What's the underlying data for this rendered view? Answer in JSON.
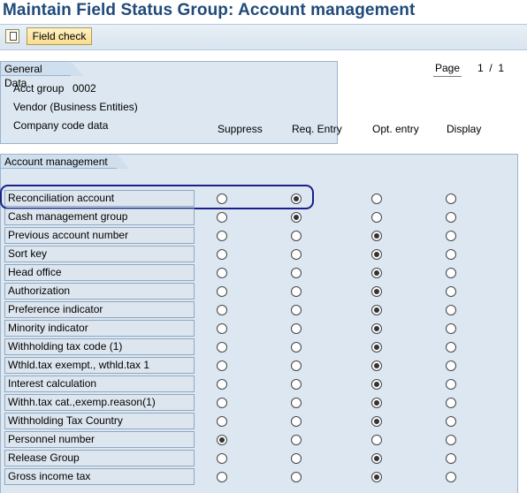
{
  "title": "Maintain Field Status Group: Account management",
  "toolbar": {
    "field_check_label": "Field check"
  },
  "general": {
    "tab": "General Data",
    "acct_group_label": "Acct group",
    "acct_group_value": "0002",
    "description": "Vendor (Business Entities)",
    "section": "Company code data"
  },
  "page": {
    "label": "Page",
    "current": "1",
    "sep": "/",
    "total": "1"
  },
  "account": {
    "tab": "Account management",
    "headers": [
      "Suppress",
      "Req. Entry",
      "Opt. entry",
      "Display"
    ],
    "rows": [
      {
        "label": "Reconciliation account",
        "selected": "req"
      },
      {
        "label": "Cash management group",
        "selected": "req"
      },
      {
        "label": "Previous account number",
        "selected": "opt"
      },
      {
        "label": "Sort key",
        "selected": "opt"
      },
      {
        "label": "Head office",
        "selected": "opt"
      },
      {
        "label": "Authorization",
        "selected": "opt"
      },
      {
        "label": "Preference indicator",
        "selected": "opt"
      },
      {
        "label": "Minority indicator",
        "selected": "opt"
      },
      {
        "label": "Withholding tax code (1)",
        "selected": "opt"
      },
      {
        "label": "Wthld.tax exempt., wthld.tax 1",
        "selected": "opt"
      },
      {
        "label": "Interest calculation",
        "selected": "opt"
      },
      {
        "label": "Withh.tax cat.,exemp.reason(1)",
        "selected": "opt"
      },
      {
        "label": "Withholding Tax Country",
        "selected": "opt"
      },
      {
        "label": "Personnel number",
        "selected": "suppress"
      },
      {
        "label": "Release Group",
        "selected": "opt"
      },
      {
        "label": "Gross income tax",
        "selected": "opt"
      }
    ]
  },
  "colors": {
    "title": "#1f4a7a",
    "panel": "#dce7f1",
    "highlight": "#1a1f8c"
  }
}
